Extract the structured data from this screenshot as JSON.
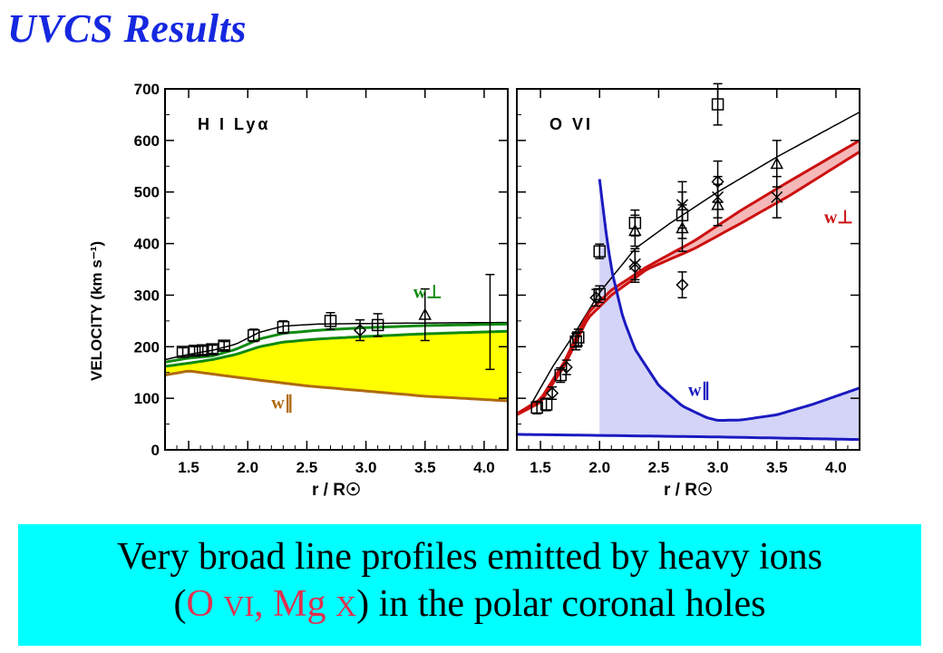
{
  "title": "UVCS Results",
  "caption": {
    "line1": "Very broad line profiles emitted by heavy ions",
    "line2_prefix": "(",
    "ion1_element": "O ",
    "ion1_stage": "VI",
    "separator": ", ",
    "ion2_element": "Mg ",
    "ion2_stage": "X",
    "line2_suffix": ") in the polar coronal holes"
  },
  "colors": {
    "title": "#1528e0",
    "caption_bg": "#00ffff",
    "ion_highlight": "#e03050",
    "yellow_fill": "#ffff00",
    "green": "#108a10",
    "brown": "#b06a10",
    "red": "#cc1010",
    "red_band": "#f5b8b8",
    "blue": "#1a1ac0",
    "blue_fill": "#d4d4f8"
  },
  "chart_data": [
    {
      "type": "line",
      "panel_label": "H I Lyα",
      "ylabel": "VELOCITY  (km s⁻¹)",
      "xlabel": "r / R☉",
      "xlim": [
        1.3,
        4.2
      ],
      "ylim": [
        0,
        700
      ],
      "xticks": [
        "1.5",
        "2.0",
        "2.5",
        "3.0",
        "3.5",
        "4.0"
      ],
      "yticks": [
        "0",
        "100",
        "200",
        "300",
        "400",
        "500",
        "600",
        "700"
      ],
      "annotations": [
        {
          "text": "w⊥",
          "x": 3.4,
          "y": 295,
          "color": "#108a10"
        },
        {
          "text": "w∥",
          "x": 2.2,
          "y": 80,
          "color": "#b06a10"
        }
      ],
      "series": [
        {
          "role": "fit",
          "color": "#000000",
          "x": [
            1.3,
            1.5,
            1.7,
            1.9,
            2.1,
            2.3,
            2.6,
            3.0,
            3.5,
            4.2
          ],
          "y": [
            175,
            185,
            193,
            205,
            228,
            240,
            244,
            245,
            246,
            247
          ]
        },
        {
          "role": "perp",
          "color": "#108a10",
          "x": [
            1.3,
            1.5,
            1.7,
            1.9,
            2.1,
            2.3,
            2.6,
            3.0,
            3.5,
            4.2
          ],
          "y": [
            170,
            178,
            182,
            195,
            215,
            226,
            232,
            237,
            241,
            244
          ]
        },
        {
          "role": "perp_lower",
          "color": "#108a10",
          "x": [
            1.3,
            1.5,
            1.7,
            1.9,
            2.1,
            2.3,
            2.6,
            3.0,
            3.5,
            4.2
          ],
          "y": [
            162,
            168,
            175,
            185,
            200,
            209,
            215,
            220,
            225,
            230
          ]
        },
        {
          "role": "parallel",
          "color": "#b06a10",
          "x": [
            1.3,
            1.5,
            1.7,
            2.0,
            2.5,
            3.0,
            3.5,
            4.2
          ],
          "y": [
            145,
            153,
            147,
            138,
            124,
            114,
            104,
            95
          ]
        }
      ],
      "points": [
        {
          "marker": "square",
          "x": 1.45,
          "y": 190,
          "err": 8
        },
        {
          "marker": "square",
          "x": 1.55,
          "y": 192,
          "err": 8
        },
        {
          "marker": "square",
          "x": 1.62,
          "y": 193,
          "err": 8
        },
        {
          "marker": "square",
          "x": 1.7,
          "y": 195,
          "err": 8
        },
        {
          "marker": "square",
          "x": 1.8,
          "y": 202,
          "err": 8
        },
        {
          "marker": "square",
          "x": 2.05,
          "y": 222,
          "err": 12
        },
        {
          "marker": "square",
          "x": 2.3,
          "y": 238,
          "err": 12
        },
        {
          "marker": "square",
          "x": 2.7,
          "y": 250,
          "err": 16
        },
        {
          "marker": "diamond",
          "x": 2.95,
          "y": 232,
          "err": 20
        },
        {
          "marker": "square",
          "x": 3.1,
          "y": 242,
          "err": 22
        },
        {
          "marker": "triangle",
          "x": 3.5,
          "y": 262,
          "err": 50
        },
        {
          "marker": "none",
          "x": 4.05,
          "y": 248,
          "err": 92
        }
      ]
    },
    {
      "type": "line",
      "panel_label": "O VI",
      "xlabel": "r / R☉",
      "xlim": [
        1.3,
        4.2
      ],
      "ylim": [
        0,
        700
      ],
      "xticks": [
        "1.5",
        "2.0",
        "2.5",
        "3.0",
        "3.5",
        "4.0"
      ],
      "yticks": [
        "0",
        "100",
        "200",
        "300",
        "400",
        "500",
        "600",
        "700"
      ],
      "annotations": [
        {
          "text": "w⊥",
          "x": 3.9,
          "y": 440,
          "color": "#cc1010"
        },
        {
          "text": "w∥",
          "x": 2.75,
          "y": 105,
          "color": "#1a1ac0"
        }
      ],
      "series": [
        {
          "role": "fit",
          "color": "#000000",
          "x": [
            1.4,
            1.6,
            1.8,
            2.0,
            2.3,
            2.6,
            3.0,
            3.5,
            4.2
          ],
          "y": [
            80,
            160,
            230,
            305,
            390,
            440,
            500,
            568,
            655
          ]
        },
        {
          "role": "perp_upper",
          "color": "#cc1010",
          "x": [
            1.3,
            1.5,
            1.7,
            1.9,
            2.1,
            2.4,
            2.8,
            3.2,
            3.6,
            4.2
          ],
          "y": [
            70,
            98,
            170,
            265,
            310,
            355,
            405,
            465,
            520,
            600
          ]
        },
        {
          "role": "perp_lower",
          "color": "#cc1010",
          "x": [
            1.3,
            1.5,
            1.7,
            1.9,
            2.1,
            2.4,
            2.8,
            3.2,
            3.6,
            4.2
          ],
          "y": [
            68,
            92,
            162,
            255,
            300,
            350,
            390,
            440,
            492,
            578
          ]
        },
        {
          "role": "parallel_upper",
          "color": "#1a1ac0",
          "x": [
            2.0,
            2.05,
            2.1,
            2.2,
            2.3,
            2.5,
            2.7,
            2.9,
            3.0,
            3.2,
            3.5,
            3.8,
            4.2
          ],
          "y": [
            525,
            430,
            350,
            255,
            195,
            125,
            85,
            63,
            57,
            58,
            68,
            88,
            120
          ]
        },
        {
          "role": "parallel_lower",
          "color": "#1a1ac0",
          "x": [
            1.3,
            2.0,
            3.0,
            4.2
          ],
          "y": [
            30,
            28,
            25,
            20
          ]
        }
      ],
      "points": [
        {
          "marker": "square",
          "x": 1.47,
          "y": 82,
          "err": 12
        },
        {
          "marker": "square",
          "x": 1.55,
          "y": 88,
          "err": 12
        },
        {
          "marker": "diamond",
          "x": 1.6,
          "y": 110,
          "err": 12
        },
        {
          "marker": "square",
          "x": 1.67,
          "y": 145,
          "err": 14
        },
        {
          "marker": "diamond",
          "x": 1.72,
          "y": 160,
          "err": 14
        },
        {
          "marker": "square",
          "x": 1.8,
          "y": 210,
          "err": 16
        },
        {
          "marker": "square",
          "x": 1.82,
          "y": 218,
          "err": 16
        },
        {
          "marker": "diamond",
          "x": 1.97,
          "y": 295,
          "err": 16
        },
        {
          "marker": "square",
          "x": 2.0,
          "y": 302,
          "err": 16
        },
        {
          "marker": "square",
          "x": 2.0,
          "y": 385,
          "err": 14
        },
        {
          "marker": "square",
          "x": 2.3,
          "y": 440,
          "err": 25
        },
        {
          "marker": "triangle",
          "x": 2.3,
          "y": 425,
          "err": 30
        },
        {
          "marker": "diamond",
          "x": 2.3,
          "y": 355,
          "err": 30
        },
        {
          "marker": "cross",
          "x": 2.3,
          "y": 360,
          "err": 30
        },
        {
          "marker": "square",
          "x": 2.7,
          "y": 455,
          "err": 45
        },
        {
          "marker": "triangle",
          "x": 2.7,
          "y": 430,
          "err": 45
        },
        {
          "marker": "cross",
          "x": 2.7,
          "y": 475,
          "err": 45
        },
        {
          "marker": "diamond",
          "x": 2.7,
          "y": 320,
          "err": 25
        },
        {
          "marker": "square",
          "x": 3.0,
          "y": 670,
          "err": 40
        },
        {
          "marker": "diamond",
          "x": 3.0,
          "y": 520,
          "err": 40
        },
        {
          "marker": "cross",
          "x": 3.0,
          "y": 490,
          "err": 40
        },
        {
          "marker": "triangle",
          "x": 3.0,
          "y": 475,
          "err": 40
        },
        {
          "marker": "triangle",
          "x": 3.5,
          "y": 555,
          "err": 45
        },
        {
          "marker": "cross",
          "x": 3.5,
          "y": 490,
          "err": 40
        }
      ]
    }
  ]
}
